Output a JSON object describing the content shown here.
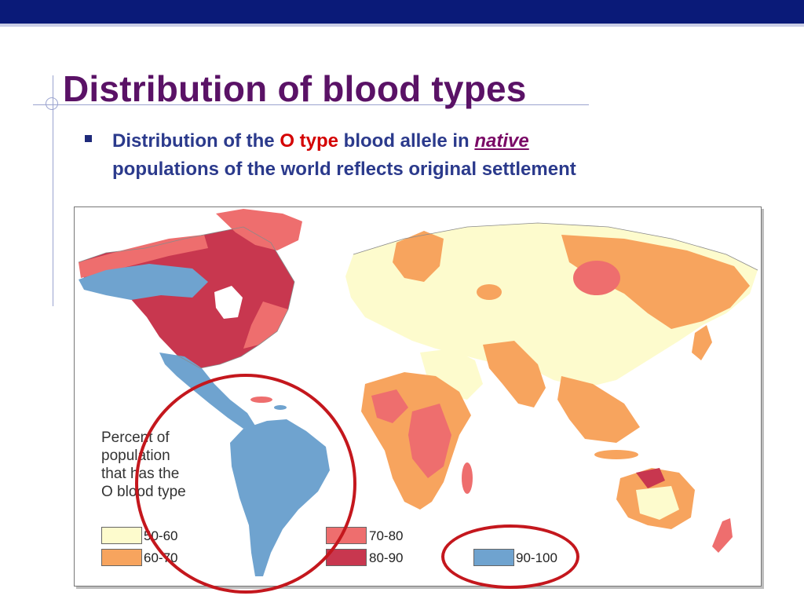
{
  "slide": {
    "title": "Distribution of blood types",
    "bullet": {
      "part1": "Distribution of the ",
      "highlight1": "O",
      "highlight2": "type",
      "part2": " blood allele in ",
      "emphasis": "native",
      "part3": "populations of the world reflects original settlement"
    }
  },
  "map": {
    "legend": {
      "title_lines": [
        "Percent of",
        "population",
        "that has the",
        "O blood type"
      ],
      "items": [
        {
          "label": "50-60",
          "color": "#fdfbcd"
        },
        {
          "label": "60-70",
          "color": "#f7a45e"
        },
        {
          "label": "70-80",
          "color": "#ee6e6e"
        },
        {
          "label": "80-90",
          "color": "#c8374f"
        },
        {
          "label": "90-100",
          "color": "#6fa3cf"
        }
      ]
    },
    "annotation_color": "#c4171d"
  }
}
